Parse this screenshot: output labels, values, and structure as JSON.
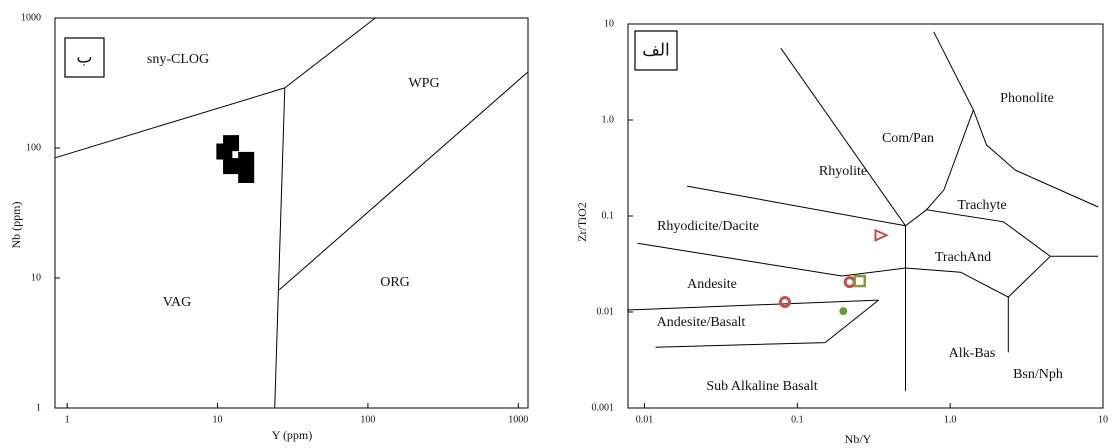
{
  "chart_data": [
    {
      "type": "scatter",
      "title_box": "ب",
      "x_label": "Y (ppm)",
      "y_label": "Nb (ppm)",
      "xscale": "log",
      "yscale": "log",
      "xlim": [
        0.83,
        1160
      ],
      "ylim": [
        1,
        1000
      ],
      "xticks": [
        1,
        10,
        100,
        1000
      ],
      "yticks": [
        1,
        10,
        100,
        1000
      ],
      "regions": [
        "sny-CLOG",
        "WPG",
        "VAG",
        "ORG"
      ],
      "boundaries": [
        {
          "x": [
            0.83,
            28
          ],
          "y": [
            84,
            290
          ]
        },
        {
          "x": [
            28,
            112
          ],
          "y": [
            290,
            1000
          ]
        },
        {
          "x": [
            28,
            24
          ],
          "y": [
            290,
            1
          ]
        },
        {
          "x": [
            25.7,
            1160
          ],
          "y": [
            8.1,
            385
          ]
        }
      ],
      "series": [
        {
          "marker": "square",
          "color": "#000000",
          "x": [
            12.3,
            11.1,
            12.3,
            15.5,
            15.5
          ],
          "values": [
            109,
            94,
            72.6,
            81,
            62
          ]
        }
      ]
    },
    {
      "type": "scatter",
      "title_box": "الف",
      "x_label": "Nb/Y",
      "y_label": "Zr/TiO2",
      "xscale": "log",
      "yscale": "log",
      "xlim": [
        0.0078,
        10
      ],
      "ylim": [
        0.001,
        10
      ],
      "xticks": [
        0.01,
        0.1,
        {
          "value": 1,
          "label": "1.0"
        },
        10
      ],
      "yticks": [
        0.001,
        0.01,
        0.1,
        {
          "value": 1,
          "label": "1.0"
        },
        10
      ],
      "regions": [
        "Phonolite",
        "Com/Pan",
        "Rhyolite",
        "Trachyte",
        "Rhyodicite/Dacite",
        "TrachAnd",
        "Andesite",
        "Andesite/Basalt",
        "Alk-Bas",
        "Bsn/Nph",
        "Sub Alkaline Basalt"
      ],
      "boundaries": [
        {
          "x": [
            0.078,
            0.51,
            0.7,
            2.23,
            4.52,
            9.3
          ],
          "y": [
            5.6,
            0.079,
            0.116,
            0.087,
            0.038,
            0.038
          ]
        },
        {
          "x": [
            0.7,
            0.91,
            1.42,
            0.78
          ],
          "y": [
            0.116,
            0.187,
            1.27,
            8.3
          ]
        },
        {
          "x": [
            1.42,
            1.73,
            2.67,
            9.3
          ],
          "y": [
            1.27,
            0.55,
            0.3,
            0.124
          ]
        },
        {
          "x": [
            0.019,
            0.51
          ],
          "y": [
            0.205,
            0.079
          ]
        },
        {
          "x": [
            0.009,
            0.196,
            0.51
          ],
          "y": [
            0.052,
            0.0237,
            0.0287
          ]
        },
        {
          "x": [
            0.0077,
            0.34
          ],
          "y": [
            0.0105,
            0.0133
          ]
        },
        {
          "x": [
            0.0118,
            0.152,
            0.34
          ],
          "y": [
            0.0043,
            0.0048,
            0.0133
          ]
        },
        {
          "x": [
            0.51,
            0.51
          ],
          "y": [
            0.079,
            0.0015
          ]
        },
        {
          "x": [
            0.51,
            1.17,
            2.4,
            4.52
          ],
          "y": [
            0.0287,
            0.026,
            0.0143,
            0.038
          ]
        },
        {
          "x": [
            2.4,
            2.4
          ],
          "y": [
            0.0143,
            0.0038
          ]
        }
      ],
      "series": [
        {
          "marker": "triangle",
          "color": "#c0504d",
          "x": [
            0.35
          ],
          "values": [
            0.063
          ]
        },
        {
          "marker": "circle",
          "color": "#c0504d",
          "x": [
            0.22,
            0.083
          ],
          "values": [
            0.0205,
            0.0127
          ]
        },
        {
          "marker": "square-open",
          "color": "#86983a",
          "x": [
            0.256
          ],
          "values": [
            0.021
          ]
        },
        {
          "marker": "dot",
          "color": "#6b9a35",
          "x": [
            0.2
          ],
          "values": [
            0.0102
          ]
        }
      ]
    }
  ]
}
